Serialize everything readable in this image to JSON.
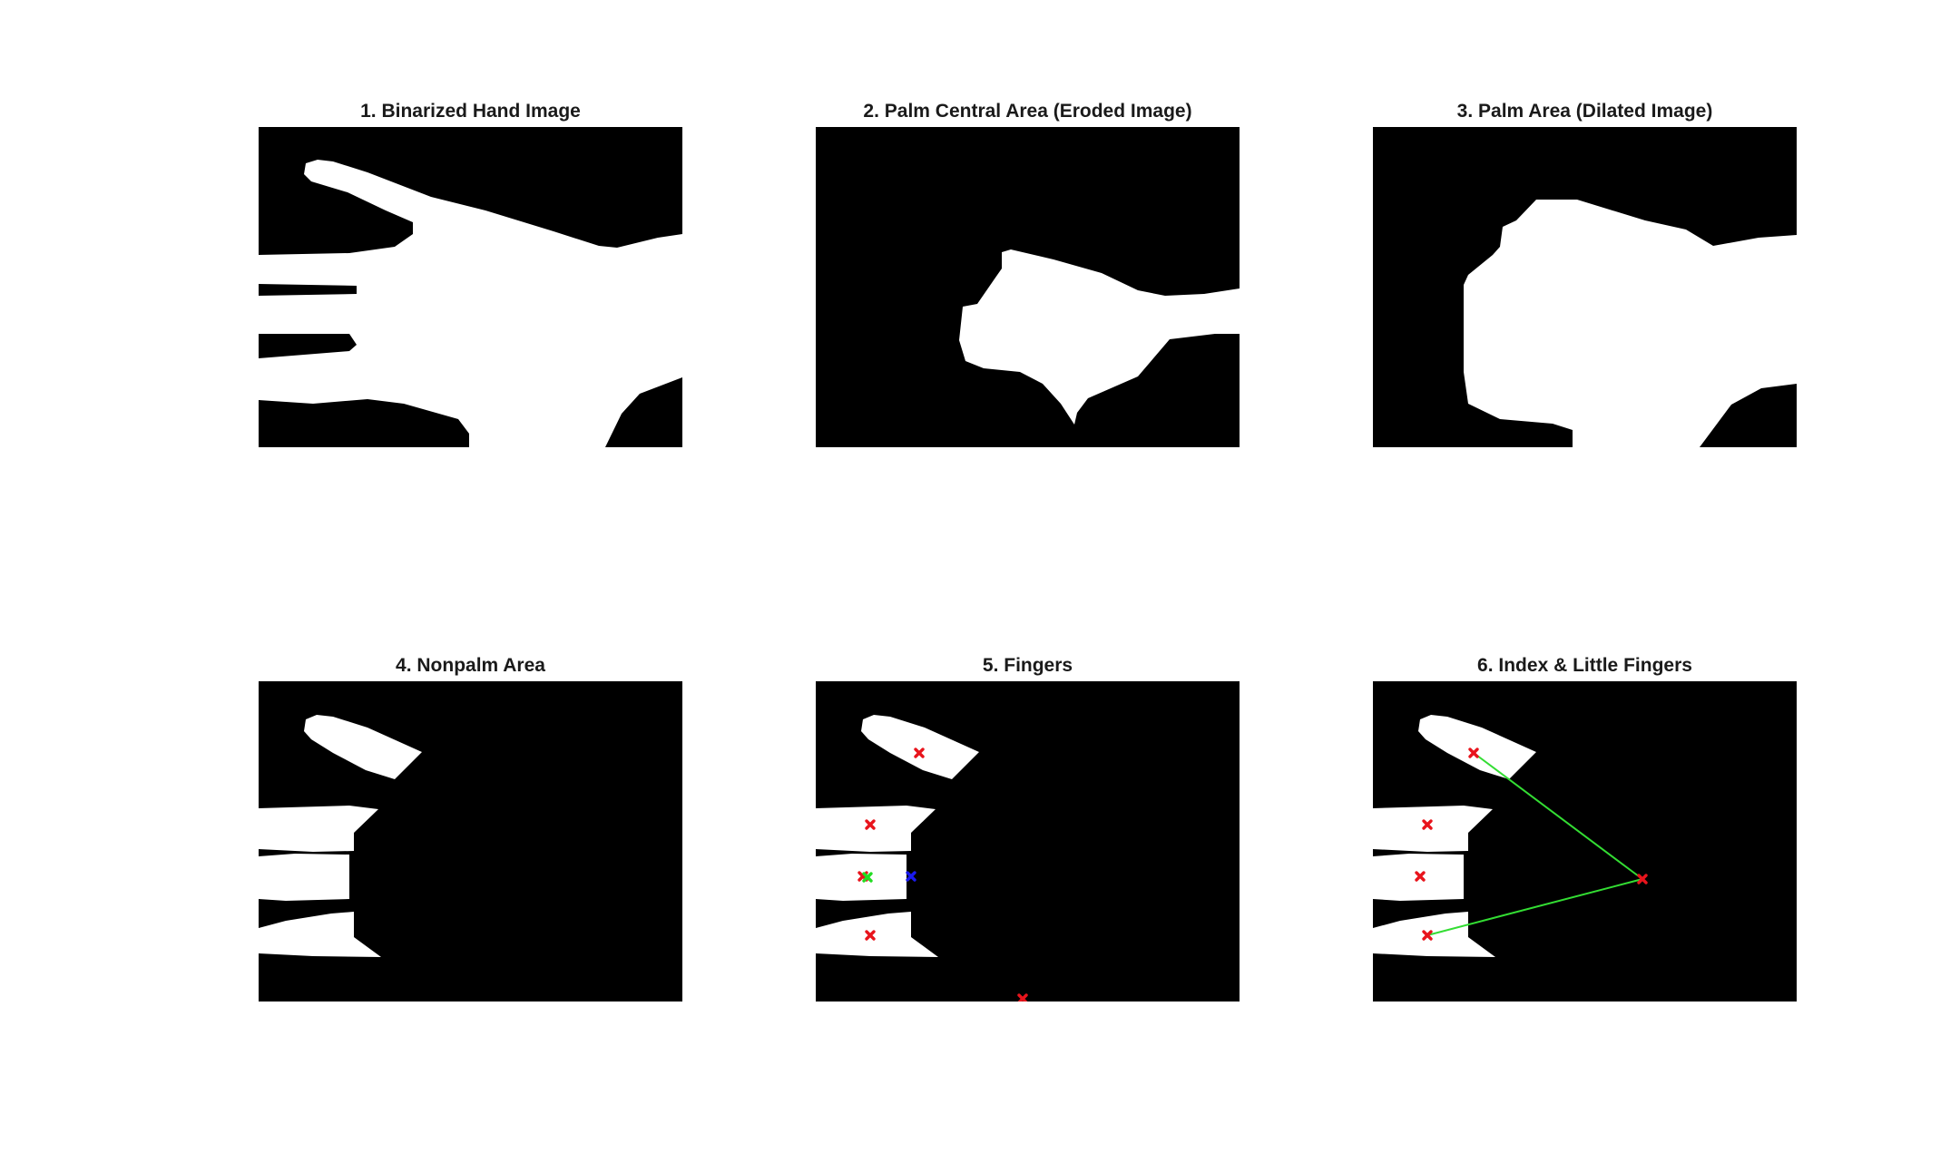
{
  "figure": {
    "panels": [
      {
        "title": "1. Binarized Hand Image"
      },
      {
        "title": "2. Palm Central Area (Eroded Image)"
      },
      {
        "title": "3. Palm Area (Dilated Image)"
      },
      {
        "title": "4. Nonpalm Area"
      },
      {
        "title": "5. Fingers"
      },
      {
        "title": "6. Index & Little Fingers"
      }
    ]
  },
  "colors": {
    "background": "#000000",
    "foreground": "#ffffff",
    "fingertip_marker": "#e8141c",
    "centroid_marker": "#22dd22",
    "reference_marker": "#1a1aee",
    "connection_line": "#33dd33"
  }
}
